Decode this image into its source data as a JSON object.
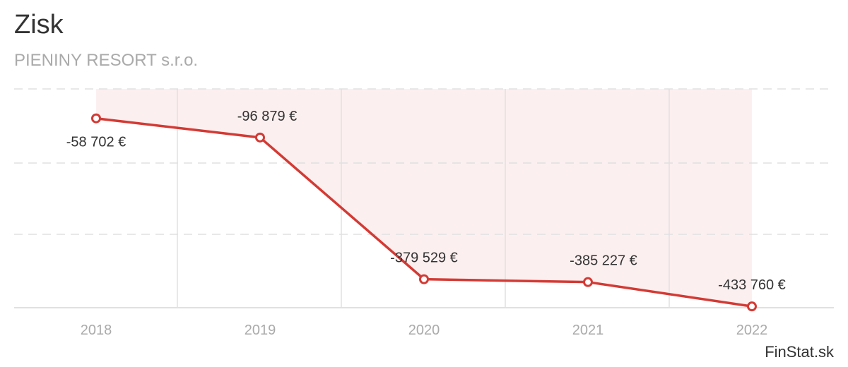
{
  "title": "Zisk",
  "subtitle": "PIENINY RESORT s.r.o.",
  "brand": "FinStat.sk",
  "colors": {
    "line": "#d33a34",
    "area": "#fcefef",
    "grid": "#e0e0e0"
  },
  "chart_data": {
    "type": "line",
    "categories": [
      "2018",
      "2019",
      "2020",
      "2021",
      "2022"
    ],
    "values": [
      -58702,
      -96879,
      -379529,
      -385227,
      -433760
    ],
    "data_labels": [
      "-58 702 €",
      "-96 879 €",
      "-379 529 €",
      "-385 227 €",
      "-433 760 €"
    ],
    "ylim": [
      -600000,
      0
    ],
    "grid": true,
    "currency": "€"
  }
}
